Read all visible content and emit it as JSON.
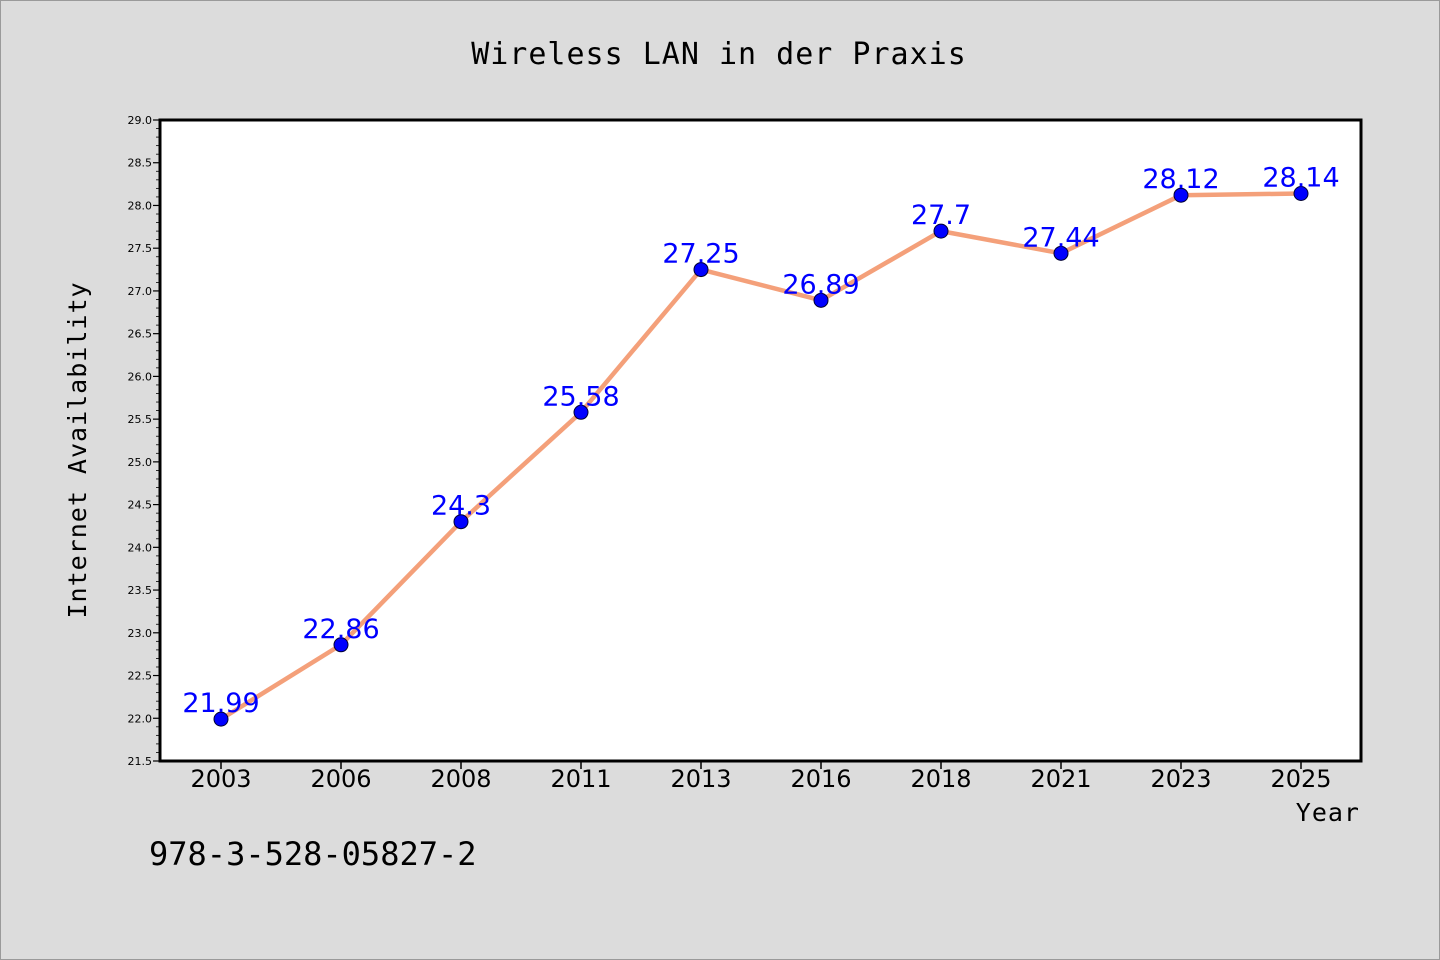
{
  "chart_data": {
    "type": "line",
    "title": "Wireless LAN in der Praxis",
    "xlabel": "Year",
    "ylabel": "Internet Availability",
    "categories": [
      "2003",
      "2006",
      "2008",
      "2011",
      "2013",
      "2016",
      "2018",
      "2021",
      "2023",
      "2025"
    ],
    "series": [
      {
        "values": [
          21.99,
          22.86,
          24.3,
          25.58,
          27.25,
          26.89,
          27.7,
          27.44,
          28.12,
          28.14
        ],
        "labels": [
          "21.99",
          "22.86",
          "24.3",
          "25.58",
          "27.25",
          "26.89",
          "27.7",
          "27.44",
          "28.12",
          "28.14"
        ],
        "line_color": "#f4a07a",
        "marker_color": "#0000ff",
        "label_color": "#0000ff"
      }
    ],
    "ylim": [
      21.5,
      29.0
    ],
    "yticks": [
      "21.5",
      "22.0",
      "22.5",
      "23.0",
      "23.5",
      "24.0",
      "24.5",
      "25.0",
      "25.5",
      "26.0",
      "26.5",
      "27.0",
      "27.5",
      "28.0",
      "28.5",
      "29.0"
    ],
    "grid": false,
    "legend": "none",
    "plot_background": "#ffffff",
    "figure_background": "#dcdcdc"
  },
  "footer": {
    "isbn": "978-3-528-05827-2"
  }
}
